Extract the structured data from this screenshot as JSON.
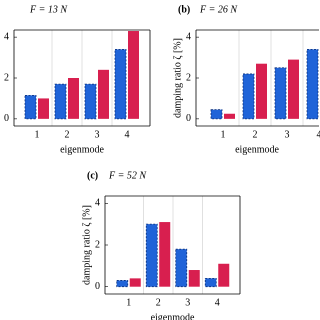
{
  "chart_data": [
    {
      "type": "bar",
      "title": "F = 13 N",
      "xlabel": "eigenmode",
      "categories": [
        "1",
        "2",
        "3",
        "4"
      ],
      "series": [
        {
          "color": "#1f63d8",
          "values": [
            1.15,
            1.7,
            1.7,
            3.4
          ]
        },
        {
          "color": "#d81f4f",
          "values": [
            1.0,
            2.0,
            2.4,
            4.3
          ]
        }
      ],
      "ylim": [
        -0.35,
        4.35
      ],
      "yticks": [
        0,
        2,
        4
      ],
      "grid": true
    },
    {
      "type": "bar",
      "panel_label": "(b)",
      "title": "F = 26 N",
      "xlabel": "eigenmode",
      "ylabel": "damping ratio ζ [%]",
      "categories": [
        "1",
        "2",
        "3",
        "4"
      ],
      "series": [
        {
          "color": "#1f63d8",
          "values": [
            0.45,
            2.2,
            2.5,
            3.4
          ]
        },
        {
          "color": "#d81f4f",
          "values": [
            0.25,
            2.7,
            2.9,
            null
          ]
        }
      ],
      "ylim": [
        -0.35,
        4.35
      ],
      "yticks": [
        0,
        2,
        4
      ],
      "grid": true
    },
    {
      "type": "bar",
      "panel_label": "(c)",
      "title": "F = 52 N",
      "xlabel": "eigenmode",
      "ylabel": "damping ratio ζ [%]",
      "categories": [
        "1",
        "2",
        "3",
        "4"
      ],
      "series": [
        {
          "color": "#1f63d8",
          "values": [
            0.3,
            3.0,
            1.8,
            0.4
          ]
        },
        {
          "color": "#d81f4f",
          "values": [
            0.4,
            3.1,
            0.8,
            1.1
          ]
        }
      ],
      "ylim": [
        -0.35,
        4.35
      ],
      "yticks": [
        0,
        2,
        4
      ],
      "grid": true
    }
  ]
}
